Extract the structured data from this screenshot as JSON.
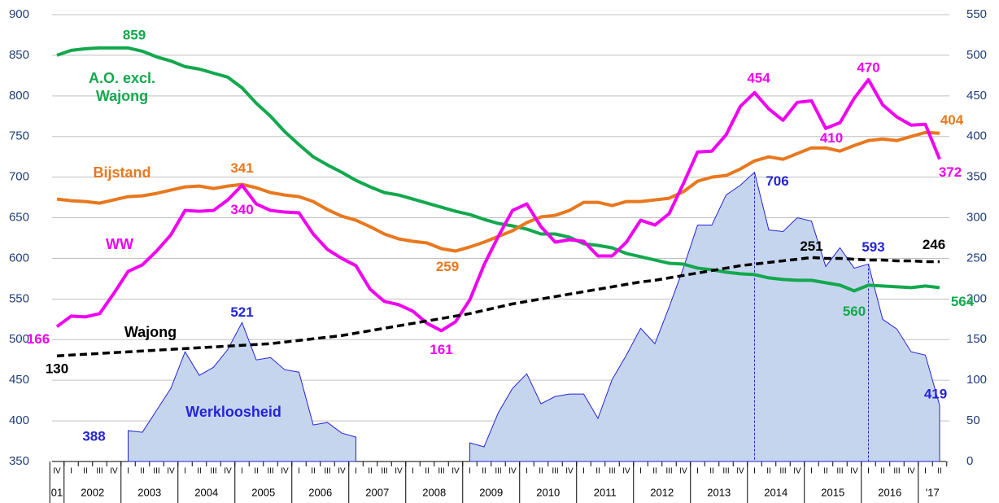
{
  "chart_data": {
    "type": "line",
    "categories": [
      "IV",
      "I",
      "II",
      "III",
      "IV",
      "I",
      "II",
      "III",
      "IV",
      "I",
      "II",
      "III",
      "IV",
      "I",
      "II",
      "III",
      "IV",
      "I",
      "II",
      "III",
      "IV",
      "I",
      "II",
      "III",
      "IV",
      "I",
      "II",
      "III",
      "IV",
      "I",
      "II",
      "III",
      "IV",
      "I",
      "II",
      "III",
      "IV",
      "I",
      "II",
      "III",
      "IV",
      "I",
      "II",
      "III",
      "IV",
      "I",
      "II",
      "III",
      "IV",
      "I",
      "II",
      "III",
      "IV",
      "I",
      "II",
      "III",
      "IV",
      "I",
      "II",
      "III",
      "IV",
      "I",
      "II"
    ],
    "year_labels": [
      "01",
      "2002",
      "2003",
      "2004",
      "2005",
      "2006",
      "2007",
      "2008",
      "2009",
      "2010",
      "2011",
      "2012",
      "2013",
      "2014",
      "2015",
      "2016",
      "'17"
    ],
    "ylim": [
      350,
      900
    ],
    "yticks": [
      350,
      400,
      450,
      500,
      550,
      600,
      650,
      700,
      750,
      800,
      850,
      900
    ],
    "y2lim": [
      0,
      550
    ],
    "y2ticks": [
      0,
      50,
      100,
      150,
      200,
      250,
      300,
      350,
      400,
      450,
      500,
      550
    ],
    "grid": true,
    "series": [
      {
        "name": "Werkloosheid",
        "color": "#2323d8",
        "fill": "#c6d5ee",
        "style": "area",
        "values": [
          null,
          null,
          null,
          null,
          null,
          388,
          386,
          413,
          440,
          485,
          456,
          466,
          488,
          521,
          475,
          478,
          463,
          460,
          395,
          398,
          385,
          380,
          null,
          null,
          null,
          null,
          null,
          null,
          null,
          373,
          368,
          410,
          440,
          458,
          421,
          430,
          433,
          433,
          403,
          451,
          481,
          514,
          495,
          540,
          588,
          641,
          641,
          678,
          690,
          706,
          635,
          633,
          650,
          646,
          590,
          613,
          588,
          593,
          525,
          513,
          485,
          481,
          419
        ],
        "value_labels": [
          null,
          null,
          null,
          null,
          null,
          "388",
          null,
          null,
          null,
          null,
          null,
          null,
          null,
          "521",
          null,
          null,
          null,
          null,
          null,
          null,
          null,
          null,
          null,
          null,
          null,
          null,
          null,
          null,
          null,
          null,
          null,
          null,
          null,
          null,
          null,
          null,
          null,
          null,
          null,
          null,
          null,
          null,
          null,
          null,
          null,
          null,
          null,
          null,
          null,
          "706",
          null,
          null,
          null,
          null,
          null,
          null,
          null,
          "593",
          null,
          null,
          null,
          null,
          "419"
        ]
      },
      {
        "name": "A.O. excl. Wajong",
        "color": "#13a84e",
        "style": "line",
        "values": [
          850,
          856,
          858,
          859,
          859,
          859,
          855,
          848,
          843,
          836,
          833,
          828,
          823,
          810,
          791,
          775,
          756,
          740,
          725,
          715,
          706,
          696,
          688,
          681,
          678,
          673,
          668,
          663,
          658,
          654,
          648,
          643,
          640,
          636,
          630,
          630,
          626,
          618,
          616,
          613,
          606,
          602,
          598,
          594,
          593,
          588,
          586,
          583,
          581,
          580,
          576,
          574,
          573,
          573,
          570,
          567,
          560,
          567,
          566,
          565,
          564,
          566,
          564
        ],
        "value_labels": [
          null,
          null,
          null,
          null,
          "859",
          null,
          null,
          null,
          null,
          null,
          null,
          null,
          null,
          null,
          null,
          null,
          null,
          null,
          null,
          null,
          null,
          null,
          null,
          null,
          null,
          null,
          null,
          null,
          null,
          null,
          null,
          null,
          null,
          null,
          null,
          null,
          null,
          null,
          null,
          null,
          null,
          null,
          null,
          null,
          null,
          null,
          null,
          null,
          null,
          null,
          null,
          null,
          null,
          null,
          null,
          null,
          "560",
          null,
          null,
          null,
          null,
          null,
          "564"
        ]
      },
      {
        "name": "Bijstand",
        "color": "#e8781e",
        "style": "line",
        "axis": "y2",
        "values": [
          323,
          321,
          320,
          318,
          322,
          326,
          327,
          330,
          334,
          338,
          339,
          336,
          339,
          341,
          337,
          331,
          328,
          326,
          320,
          310,
          302,
          297,
          289,
          280,
          274,
          271,
          269,
          262,
          259,
          264,
          270,
          277,
          284,
          294,
          301,
          303,
          309,
          319,
          319,
          315,
          320,
          320,
          322,
          324,
          332,
          345,
          350,
          352,
          360,
          370,
          375,
          372,
          379,
          386,
          386,
          382,
          389,
          395,
          397,
          395,
          400,
          405,
          404
        ],
        "value_labels": [
          null,
          null,
          null,
          null,
          null,
          null,
          null,
          null,
          null,
          null,
          null,
          null,
          null,
          "341",
          null,
          null,
          null,
          null,
          null,
          null,
          null,
          null,
          null,
          null,
          null,
          null,
          null,
          null,
          "259",
          null,
          null,
          null,
          null,
          null,
          null,
          null,
          null,
          null,
          null,
          null,
          null,
          null,
          null,
          null,
          null,
          null,
          null,
          null,
          null,
          null,
          null,
          null,
          null,
          null,
          null,
          null,
          null,
          null,
          null,
          null,
          null,
          null,
          "404"
        ]
      },
      {
        "name": "WW",
        "color": "#f000f0",
        "style": "line",
        "axis": "y2",
        "values": [
          166,
          179,
          178,
          182,
          207,
          234,
          242,
          259,
          279,
          309,
          308,
          309,
          322,
          340,
          317,
          309,
          307,
          306,
          280,
          261,
          250,
          241,
          212,
          197,
          193,
          185,
          170,
          161,
          172,
          199,
          242,
          277,
          309,
          317,
          289,
          270,
          273,
          271,
          253,
          253,
          270,
          297,
          291,
          305,
          342,
          381,
          382,
          402,
          437,
          454,
          434,
          420,
          442,
          444,
          410,
          417,
          447,
          470,
          439,
          424,
          414,
          415,
          372
        ],
        "value_labels": [
          "166",
          null,
          null,
          null,
          null,
          null,
          null,
          null,
          null,
          null,
          null,
          null,
          null,
          "340",
          null,
          null,
          null,
          null,
          null,
          null,
          null,
          null,
          null,
          null,
          null,
          null,
          null,
          "161",
          null,
          null,
          null,
          null,
          null,
          null,
          null,
          null,
          null,
          null,
          null,
          null,
          null,
          null,
          null,
          null,
          null,
          null,
          null,
          null,
          null,
          "454",
          null,
          null,
          null,
          null,
          "410",
          null,
          null,
          "470",
          null,
          null,
          null,
          null,
          "372"
        ]
      },
      {
        "name": "Wajong",
        "color": "#000000",
        "style": "dashed",
        "axis": "y2",
        "values": [
          130,
          131,
          132,
          133,
          134,
          135,
          136,
          137,
          138,
          139,
          140,
          141,
          142,
          143,
          144,
          145,
          147,
          149,
          151,
          153,
          155,
          158,
          161,
          164,
          167,
          170,
          173,
          176,
          179,
          182,
          186,
          190,
          194,
          197,
          200,
          203,
          206,
          209,
          212,
          215,
          218,
          221,
          223,
          226,
          229,
          232,
          235,
          238,
          241,
          243,
          245,
          247,
          249,
          251,
          250,
          250,
          249,
          248,
          248,
          247,
          247,
          246,
          246
        ],
        "value_labels": [
          "130",
          null,
          null,
          null,
          null,
          null,
          null,
          null,
          null,
          null,
          null,
          null,
          null,
          null,
          null,
          null,
          null,
          null,
          null,
          null,
          null,
          null,
          null,
          null,
          null,
          null,
          null,
          null,
          null,
          null,
          null,
          null,
          null,
          null,
          null,
          null,
          null,
          null,
          null,
          null,
          null,
          null,
          null,
          null,
          null,
          null,
          null,
          null,
          null,
          null,
          null,
          null,
          null,
          "251",
          null,
          null,
          null,
          null,
          null,
          null,
          null,
          null,
          "246"
        ]
      }
    ]
  }
}
